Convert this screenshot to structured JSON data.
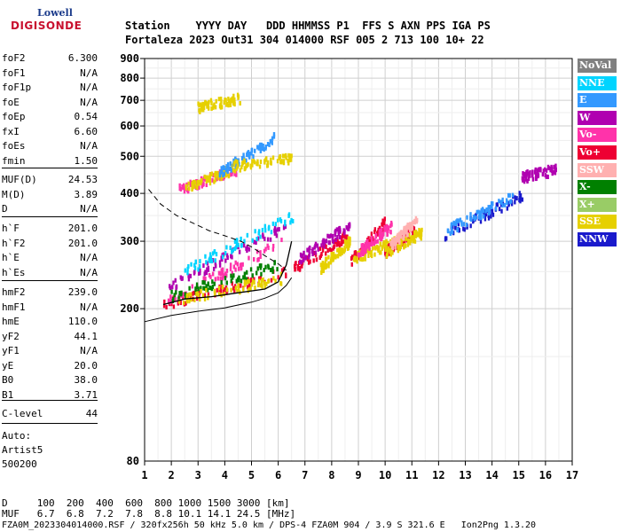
{
  "logo": {
    "line1": "Lowell",
    "line2": "DIGISONDE"
  },
  "header": {
    "labels": "Station    YYYY DAY   DDD HHMMSS P1  FFS S AXN PPS IGA PS",
    "values": "Fortaleza 2023 Out31 304 014000 RSF 005 2 713 100 10+ 22"
  },
  "params": {
    "g1": [
      {
        "k": "foF2",
        "v": "6.300"
      },
      {
        "k": "foF1",
        "v": "N/A"
      },
      {
        "k": "foF1p",
        "v": "N/A"
      },
      {
        "k": "foE",
        "v": "N/A"
      },
      {
        "k": "foEp",
        "v": "0.54"
      },
      {
        "k": "fxI",
        "v": "6.60"
      },
      {
        "k": "foEs",
        "v": "N/A"
      },
      {
        "k": "fmin",
        "v": "1.50"
      }
    ],
    "g2": [
      {
        "k": "MUF(D)",
        "v": "24.53"
      },
      {
        "k": "M(D)",
        "v": "3.89"
      },
      {
        "k": "D",
        "v": "N/A"
      }
    ],
    "g3": [
      {
        "k": "h`F",
        "v": "201.0"
      },
      {
        "k": "h`F2",
        "v": "201.0"
      },
      {
        "k": "h`E",
        "v": "N/A"
      },
      {
        "k": "h`Es",
        "v": "N/A"
      }
    ],
    "g4": [
      {
        "k": "hmF2",
        "v": "239.0"
      },
      {
        "k": "hmF1",
        "v": "N/A"
      },
      {
        "k": "hmE",
        "v": "110.0"
      },
      {
        "k": "yF2",
        "v": "44.1"
      },
      {
        "k": "yF1",
        "v": "N/A"
      },
      {
        "k": "yE",
        "v": "20.0"
      },
      {
        "k": "B0",
        "v": "38.0"
      },
      {
        "k": "B1",
        "v": "3.71"
      }
    ],
    "g5": [
      {
        "k": "C-level",
        "v": "44"
      }
    ]
  },
  "auto": {
    "line1": "Auto:",
    "line2": "Artist5",
    "line3": "500200"
  },
  "footer": {
    "d_row": "D     100  200  400  600  800 1000 1500 3000 [km]",
    "muf_row": "MUF   6.7  6.8  7.2  7.8  8.8 10.1 14.1 24.5 [MHz]",
    "file_row": "FZA0M_2023304014000.RSF / 320fx256h 50 kHz 5.0 km / DPS-4 FZA0M 904 / 3.9 S 321.6 E   Ion2Png 1.3.20"
  },
  "legend": [
    {
      "label": "NoVal",
      "bg": "#808080",
      "fg": "#ffffff"
    },
    {
      "label": "NNE",
      "bg": "#00d4ff",
      "fg": "#ffffff"
    },
    {
      "label": "E",
      "bg": "#3399ff",
      "fg": "#ffffff"
    },
    {
      "label": "W",
      "bg": "#b000b0",
      "fg": "#ffffff"
    },
    {
      "label": "Vo-",
      "bg": "#ff33aa",
      "fg": "#ffffff"
    },
    {
      "label": "Vo+",
      "bg": "#ee0033",
      "fg": "#ffffff"
    },
    {
      "label": "SSW",
      "bg": "#ffb0b0",
      "fg": "#ffffff"
    },
    {
      "label": "X-",
      "bg": "#008000",
      "fg": "#ffffff"
    },
    {
      "label": "X+",
      "bg": "#99cc66",
      "fg": "#ffffff"
    },
    {
      "label": "SSE",
      "bg": "#e6d000",
      "fg": "#ffffff"
    },
    {
      "label": "NNW",
      "bg": "#1a1acc",
      "fg": "#ffffff"
    }
  ],
  "chart_data": {
    "type": "scatter",
    "x_ticks": [
      "1",
      "2",
      "3",
      "4",
      "5",
      "6",
      "7",
      "8",
      "9",
      "10",
      "11",
      "12",
      "13",
      "14",
      "15",
      "16",
      "17"
    ],
    "y_ticks": [
      "200",
      "300",
      "400",
      "500",
      "600",
      "700",
      "800",
      "900"
    ],
    "xlim": [
      1,
      17
    ],
    "y_tick_values": [
      200,
      300,
      400,
      500,
      600,
      700,
      800,
      900
    ],
    "y_bottom_label": "80",
    "y_scale": "log",
    "grid": true,
    "traces": [
      {
        "color": "#ee0033",
        "x": [
          1.7,
          6.5
        ],
        "y": [
          205,
          250
        ]
      },
      {
        "color": "#b000b0",
        "x": [
          1.8,
          6.4
        ],
        "y": [
          225,
          330
        ]
      },
      {
        "color": "#ff33aa",
        "x": [
          1.9,
          6.3
        ],
        "y": [
          210,
          300
        ]
      },
      {
        "color": "#008000",
        "x": [
          2.0,
          6.0
        ],
        "y": [
          215,
          260
        ]
      },
      {
        "color": "#e6d000",
        "x": [
          2.2,
          6.2
        ],
        "y": [
          210,
          240
        ]
      },
      {
        "color": "#00d4ff",
        "x": [
          2.5,
          6.6
        ],
        "y": [
          250,
          350
        ]
      },
      {
        "color": "#ee0033",
        "x": [
          6.6,
          8.6
        ],
        "y": [
          255,
          310
        ]
      },
      {
        "color": "#b000b0",
        "x": [
          6.8,
          8.7
        ],
        "y": [
          270,
          330
        ]
      },
      {
        "color": "#e6d000",
        "x": [
          7.6,
          8.7
        ],
        "y": [
          255,
          300
        ]
      },
      {
        "color": "#ee0033",
        "x": [
          8.7,
          10.0
        ],
        "y": [
          265,
          335
        ]
      },
      {
        "color": "#e6d000",
        "x": [
          8.8,
          10.5
        ],
        "y": [
          270,
          300
        ]
      },
      {
        "color": "#ff33aa",
        "x": [
          9.0,
          10.3
        ],
        "y": [
          280,
          330
        ]
      },
      {
        "color": "#ee0033",
        "x": [
          10.0,
          11.1
        ],
        "y": [
          280,
          320
        ]
      },
      {
        "color": "#e6d000",
        "x": [
          10.0,
          11.4
        ],
        "y": [
          280,
          315
        ]
      },
      {
        "color": "#ffb0b0",
        "x": [
          10.2,
          11.2
        ],
        "y": [
          290,
          340
        ]
      },
      {
        "color": "#1a1acc",
        "x": [
          12.2,
          15.2
        ],
        "y": [
          310,
          395
        ]
      },
      {
        "color": "#3399ff",
        "x": [
          12.3,
          14.8
        ],
        "y": [
          320,
          390
        ]
      },
      {
        "color": "#ff33aa",
        "x": [
          2.3,
          4.5
        ],
        "y": [
          410,
          460
        ]
      },
      {
        "color": "#e6d000",
        "x": [
          2.5,
          4.3
        ],
        "y": [
          410,
          460
        ]
      },
      {
        "color": "#3399ff",
        "x": [
          3.8,
          5.9
        ],
        "y": [
          450,
          560
        ]
      },
      {
        "color": "#e6d000",
        "x": [
          4.3,
          6.5
        ],
        "y": [
          470,
          495
        ]
      },
      {
        "color": "#e6d000",
        "x": [
          3.0,
          4.6
        ],
        "y": [
          670,
          705
        ]
      },
      {
        "color": "#b000b0",
        "x": [
          15.1,
          16.4
        ],
        "y": [
          440,
          460
        ]
      }
    ],
    "black_trace": {
      "x": [
        1.7,
        2.5,
        3.5,
        4.5,
        5.5,
        6.0,
        6.3,
        6.5
      ],
      "y": [
        205,
        212,
        215,
        220,
        225,
        235,
        260,
        300
      ]
    },
    "profile_solid": {
      "x": [
        1.0,
        2.0,
        3.0,
        4.0,
        5.0,
        5.5,
        6.0,
        6.3,
        6.5
      ],
      "y": [
        185,
        192,
        197,
        201,
        208,
        213,
        220,
        230,
        241
      ]
    },
    "profile_dashed": {
      "x": [
        1.15,
        1.6,
        2.2,
        2.8,
        3.4,
        4.0,
        4.6,
        5.0,
        5.5,
        6.0,
        6.3
      ],
      "y": [
        410,
        375,
        350,
        335,
        320,
        310,
        300,
        290,
        275,
        262,
        252
      ]
    }
  }
}
